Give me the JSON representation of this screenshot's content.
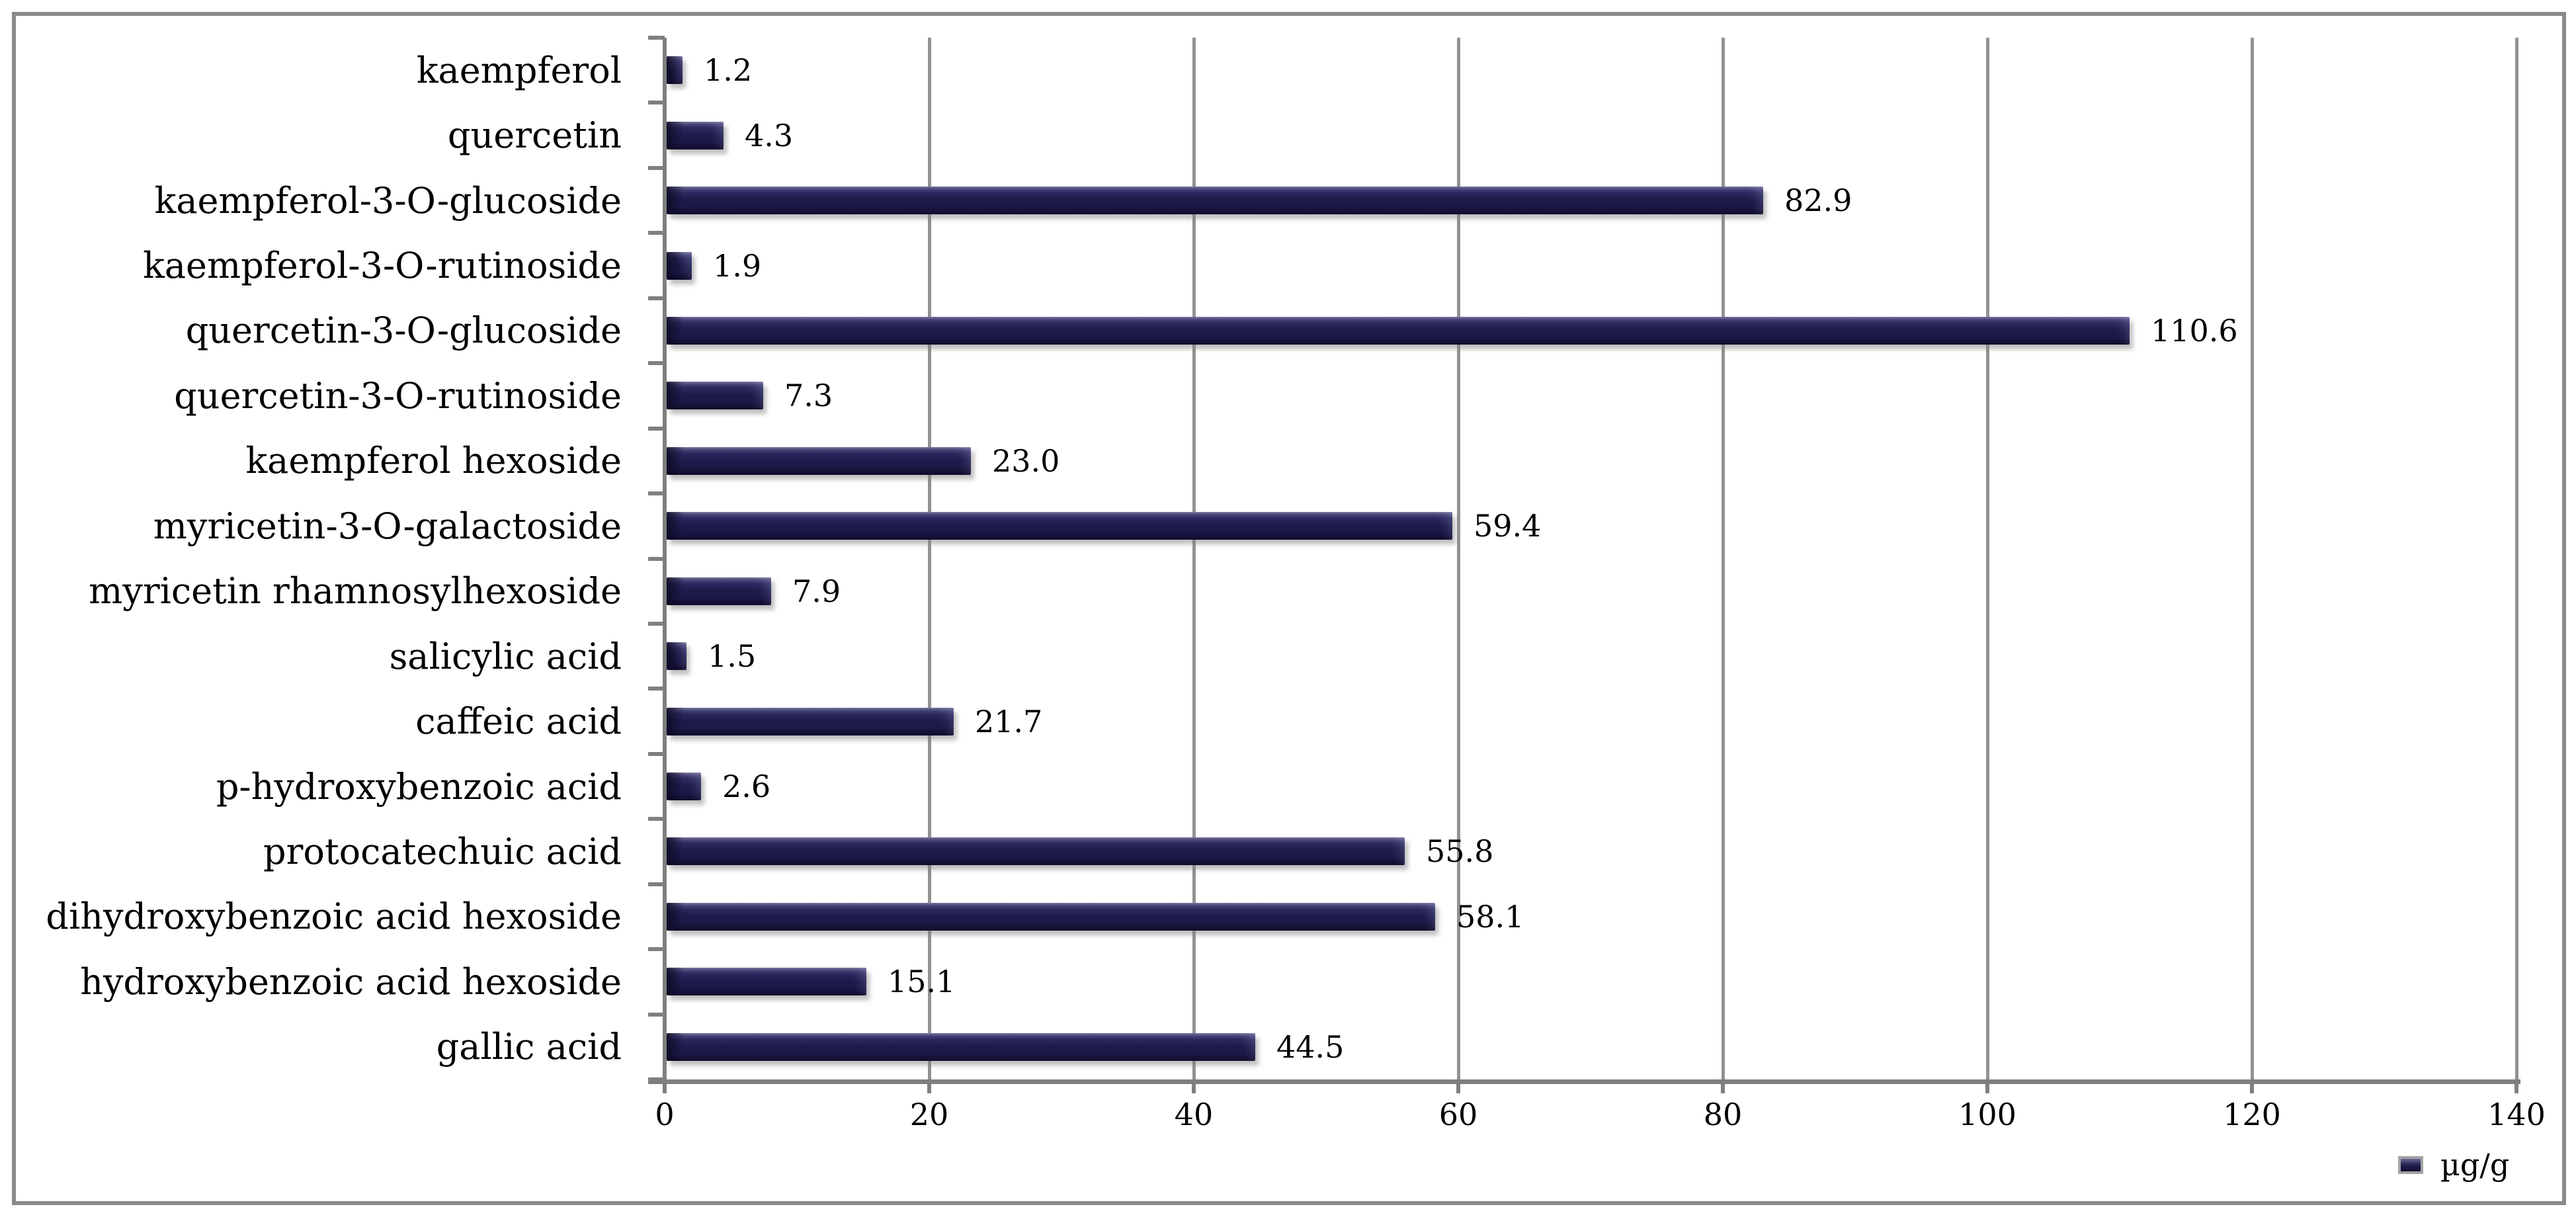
{
  "chart_data": {
    "type": "bar",
    "orientation": "horizontal",
    "title": "",
    "xlabel": "",
    "ylabel": "",
    "categories": [
      "kaempferol",
      "quercetin",
      "kaempferol-3-O-glucoside",
      "kaempferol-3-O-rutinoside",
      "quercetin-3-O-glucoside",
      "quercetin-3-O-rutinoside",
      "kaempferol hexoside",
      "myricetin-3-O-galactoside",
      "myricetin rhamnosylhexoside",
      "salicylic acid",
      "caffeic acid",
      "p-hydroxybenzoic acid",
      "protocatechuic acid",
      "dihydroxybenzoic acid hexoside",
      "hydroxybenzoic acid hexoside",
      "gallic acid"
    ],
    "values": [
      1.2,
      4.3,
      82.9,
      1.9,
      110.6,
      7.3,
      23.0,
      59.4,
      7.9,
      1.5,
      21.7,
      2.6,
      55.8,
      58.1,
      15.1,
      44.5
    ],
    "value_labels": [
      "1.2",
      "4.3",
      "82.9",
      "1.9",
      "110.6",
      "7.3",
      "23.0",
      "59.4",
      "7.9",
      "1.5",
      "21.7",
      "2.6",
      "55.8",
      "58.1",
      "15.1",
      "44.5"
    ],
    "series_name": "µg/g",
    "xlim": [
      0,
      140
    ],
    "x_ticks": [
      0,
      20,
      40,
      60,
      80,
      100,
      120,
      140
    ],
    "x_tick_labels": [
      "0",
      "20",
      "40",
      "60",
      "80",
      "100",
      "120",
      "140"
    ],
    "grid": "vertical-gridlines-on",
    "legend_position": "bottom-right",
    "bar_color": "#1d1b4a",
    "axis_color": "#7f7f7f",
    "gridline_color": "#929292",
    "border_color": "#8a8a8a",
    "background_color": "#ffffff"
  },
  "legend": {
    "label": "µg/g"
  }
}
